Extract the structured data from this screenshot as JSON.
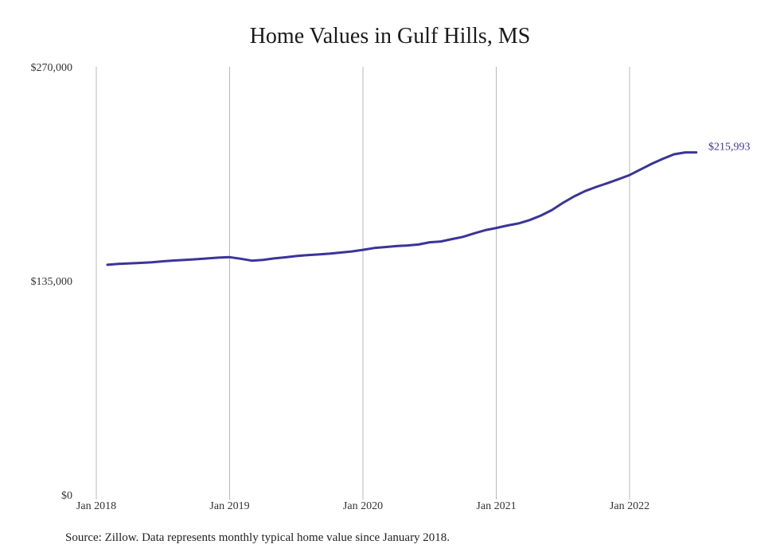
{
  "chart_data": {
    "type": "line",
    "title": "Home Values in Gulf Hills, MS",
    "xlabel": "",
    "ylabel": "",
    "ylim": [
      0,
      270000
    ],
    "y_ticks": [
      {
        "value": 0,
        "label": "$0"
      },
      {
        "value": 135000,
        "label": "$135,000"
      },
      {
        "value": 270000,
        "label": "$270,000"
      }
    ],
    "x_ticks": [
      {
        "value": "2018-01",
        "label": "Jan 2018"
      },
      {
        "value": "2019-01",
        "label": "Jan 2019"
      },
      {
        "value": "2020-01",
        "label": "Jan 2020"
      },
      {
        "value": "2021-01",
        "label": "Jan 2021"
      },
      {
        "value": "2022-01",
        "label": "Jan 2022"
      }
    ],
    "grid": "vertical",
    "line_color": "#3a3499",
    "series": [
      {
        "end_label": "$215,993",
        "x": [
          "2018-02",
          "2018-03",
          "2018-04",
          "2018-05",
          "2018-06",
          "2018-07",
          "2018-08",
          "2018-09",
          "2018-10",
          "2018-11",
          "2018-12",
          "2019-01",
          "2019-02",
          "2019-03",
          "2019-04",
          "2019-05",
          "2019-06",
          "2019-07",
          "2019-08",
          "2019-09",
          "2019-10",
          "2019-11",
          "2019-12",
          "2020-01",
          "2020-02",
          "2020-03",
          "2020-04",
          "2020-05",
          "2020-06",
          "2020-07",
          "2020-08",
          "2020-09",
          "2020-10",
          "2020-11",
          "2020-12",
          "2021-01",
          "2021-02",
          "2021-03",
          "2021-04",
          "2021-05",
          "2021-06",
          "2021-07",
          "2021-08",
          "2021-09",
          "2021-10",
          "2021-11",
          "2021-12",
          "2022-01",
          "2022-02",
          "2022-03",
          "2022-04",
          "2022-05",
          "2022-06",
          "2022-07"
        ],
        "values": [
          145100,
          145700,
          146000,
          146300,
          146700,
          147300,
          147800,
          148200,
          148600,
          149100,
          149600,
          149900,
          148900,
          147700,
          148200,
          149100,
          149800,
          150600,
          151200,
          151600,
          152100,
          152800,
          153500,
          154500,
          155700,
          156300,
          156900,
          157300,
          157900,
          159300,
          159800,
          161300,
          162700,
          164900,
          166900,
          168300,
          169900,
          171200,
          173300,
          176100,
          179600,
          184200,
          188200,
          191600,
          194200,
          196600,
          199100,
          201700,
          205300,
          208800,
          212000,
          214800,
          215993,
          216000
        ]
      }
    ]
  },
  "source": "Source: Zillow. Data represents monthly typical home value since January 2018."
}
